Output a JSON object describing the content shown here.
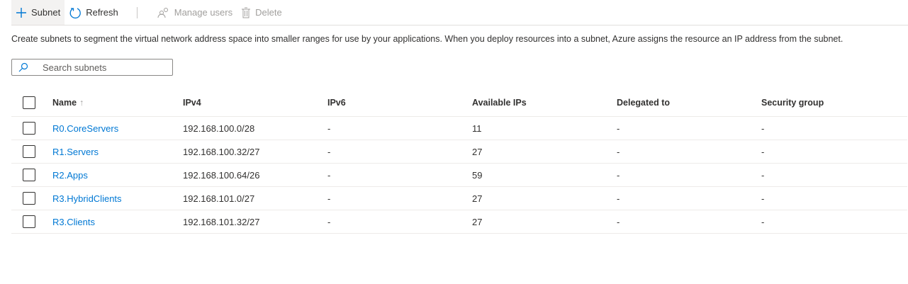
{
  "toolbar": {
    "subnet": "Subnet",
    "refresh": "Refresh",
    "manage_users": "Manage users",
    "delete": "Delete"
  },
  "description": "Create subnets to segment the virtual network address space into smaller ranges for use by your applications. When you deploy resources into a subnet, Azure assigns the resource an IP address from the subnet.",
  "search": {
    "placeholder": "Search subnets"
  },
  "table": {
    "headers": [
      "Name",
      "IPv4",
      "IPv6",
      "Available IPs",
      "Delegated to",
      "Security group"
    ],
    "sort_indicator": "↑",
    "rows": [
      {
        "name": "R0.CoreServers",
        "ipv4": "192.168.100.0/28",
        "ipv6": "-",
        "available": "11",
        "delegated": "-",
        "nsg": "-"
      },
      {
        "name": "R1.Servers",
        "ipv4": "192.168.100.32/27",
        "ipv6": "-",
        "available": "27",
        "delegated": "-",
        "nsg": "-"
      },
      {
        "name": "R2.Apps",
        "ipv4": "192.168.100.64/26",
        "ipv6": "-",
        "available": "59",
        "delegated": "-",
        "nsg": "-"
      },
      {
        "name": "R3.HybridClients",
        "ipv4": "192.168.101.0/27",
        "ipv6": "-",
        "available": "27",
        "delegated": "-",
        "nsg": "-"
      },
      {
        "name": "R3.Clients",
        "ipv4": "192.168.101.32/27",
        "ipv6": "-",
        "available": "27",
        "delegated": "-",
        "nsg": "-"
      }
    ]
  }
}
